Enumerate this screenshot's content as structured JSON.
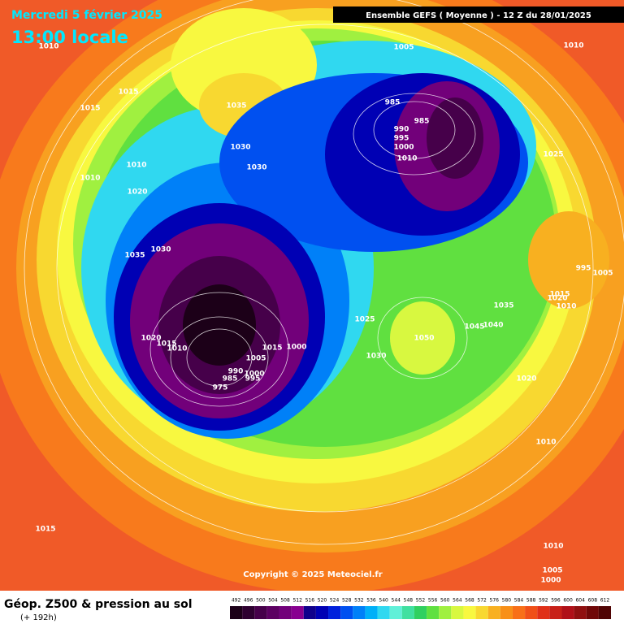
{
  "header": {
    "date_line": "Mercredi 5 février 2025",
    "time_line": "13:00 locale",
    "run_info": "Ensemble GEFS  ( Moyenne )  -  12 Z du 28/01/2025"
  },
  "map": {
    "isobar_labels": [
      "1010",
      "1005",
      "1010",
      "1015",
      "1015",
      "1035",
      "985",
      "985",
      "990",
      "995",
      "1000",
      "1010",
      "1025",
      "1030",
      "1030",
      "1010",
      "1010",
      "1020",
      "1030",
      "1035",
      "995",
      "1005",
      "1015",
      "1020",
      "1010",
      "1035",
      "1045",
      "1040",
      "1025",
      "1050",
      "1020",
      "1015",
      "1010",
      "1005",
      "1015",
      "1000",
      "1030",
      "1020",
      "990",
      "985",
      "995",
      "1000",
      "975",
      "1010",
      "1015",
      "1010",
      "1005",
      "1000"
    ],
    "copyright": "Copyright © 2025 Meteociel.fr"
  },
  "footer": {
    "title": "Géop. Z500 & pression au sol",
    "lead": "(+ 192h)",
    "scale_values": [
      492,
      496,
      500,
      504,
      508,
      512,
      516,
      520,
      524,
      528,
      532,
      536,
      540,
      544,
      548,
      552,
      556,
      560,
      564,
      568,
      572,
      576,
      580,
      584,
      588,
      592,
      596,
      600,
      604,
      608,
      612
    ],
    "scale_colors": [
      "#1c0018",
      "#2e0030",
      "#46004a",
      "#5c0062",
      "#72007a",
      "#880090",
      "#10008c",
      "#0000b4",
      "#0020dc",
      "#0050f0",
      "#0080f8",
      "#00b0f8",
      "#30d8f0",
      "#60f0d8",
      "#40e0a0",
      "#30d060",
      "#60e040",
      "#a0f040",
      "#d8f840",
      "#f8f840",
      "#f8d830",
      "#f8b020",
      "#f89018",
      "#f87018",
      "#f05018",
      "#e03018",
      "#c82018",
      "#b01018",
      "#901010",
      "#700808",
      "#500404"
    ]
  }
}
